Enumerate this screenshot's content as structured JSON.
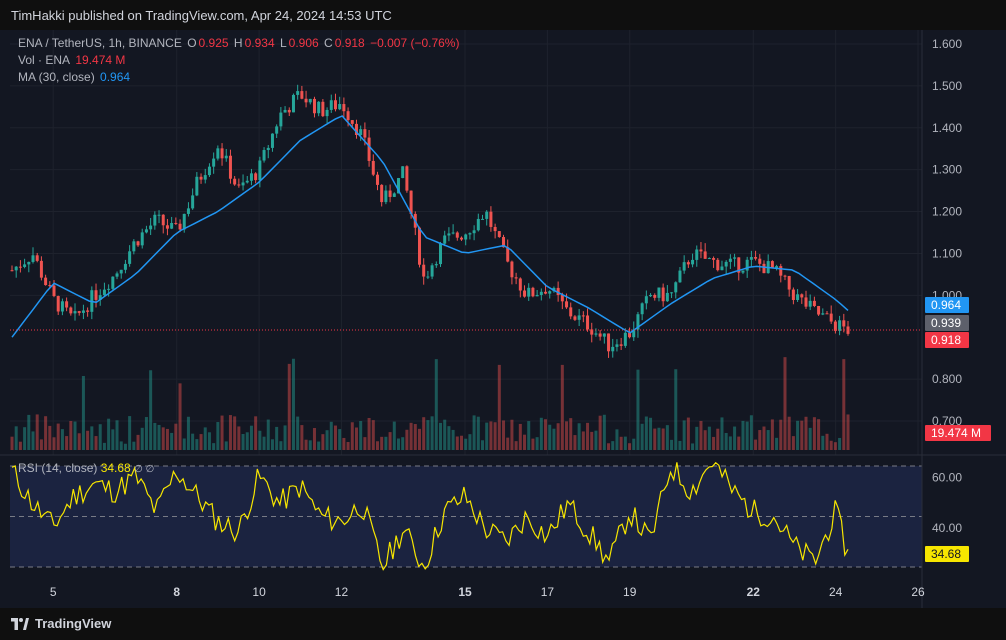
{
  "header": {
    "published_text": "TimHakki published on TradingView.com, Apr 24, 2024 14:53 UTC"
  },
  "legend": {
    "symbol": "ENA / TetherUS, 1h, BINANCE",
    "o_label": "O",
    "o_value": "0.925",
    "h_label": "H",
    "h_value": "0.934",
    "l_label": "L",
    "l_value": "0.906",
    "c_label": "C",
    "c_value": "0.918",
    "change": "−0.007 (−0.76%)",
    "vol_label": "Vol · ENA",
    "vol_value": "19.474 M",
    "ma_label": "MA (30, close)",
    "ma_value": "0.964"
  },
  "rsi_legend": {
    "label": "RSI (14, close)",
    "value": "34.68",
    "icons": "∅ ∅"
  },
  "price_axis": {
    "ticks": [
      "1.600",
      "1.500",
      "1.400",
      "1.300",
      "1.200",
      "1.100",
      "1.000",
      "0.800",
      "0.700"
    ]
  },
  "rsi_axis": {
    "ticks": [
      "60.00",
      "40.00"
    ]
  },
  "time_axis": {
    "ticks": [
      "5",
      "8",
      "10",
      "12",
      "15",
      "17",
      "19",
      "22",
      "24",
      "26"
    ],
    "bold": [
      "8",
      "15",
      "22"
    ]
  },
  "badges": {
    "ma": "0.964",
    "prev": "0.939",
    "last": "0.918",
    "volume": "19.474 M",
    "rsi": "34.68"
  },
  "footer": {
    "brand": "TradingView"
  },
  "colors": {
    "up": "#26a69a",
    "down": "#ef5350",
    "ma": "#2196f3",
    "rsi": "#f7e600",
    "rsi_band": "#1b2340",
    "background": "#131722",
    "grid": "#1e222d"
  },
  "chart_data": [
    {
      "type": "line",
      "title": "ENA / TetherUS, 1h, BINANCE",
      "x_range": [
        "Apr 4",
        "Apr 24"
      ],
      "ylim": [
        0.7,
        1.6
      ],
      "series": [
        {
          "name": "ENA / TetherUS close (approx. 1h candles)",
          "x": [
            4.0,
            4.5,
            5.0,
            5.5,
            6.0,
            6.5,
            7.0,
            7.5,
            8.0,
            8.5,
            9.0,
            9.5,
            10.0,
            10.5,
            11.0,
            11.5,
            12.0,
            12.5,
            13.0,
            13.5,
            14.0,
            14.5,
            15.0,
            15.5,
            16.0,
            16.5,
            17.0,
            17.5,
            18.0,
            18.5,
            19.0,
            19.5,
            20.0,
            20.5,
            21.0,
            21.5,
            22.0,
            22.5,
            23.0,
            23.5,
            24.0,
            24.3
          ],
          "values": [
            1.06,
            1.1,
            0.99,
            0.94,
            1.0,
            1.05,
            1.13,
            1.18,
            1.15,
            1.27,
            1.36,
            1.25,
            1.3,
            1.43,
            1.48,
            1.44,
            1.46,
            1.38,
            1.22,
            1.29,
            1.04,
            1.13,
            1.15,
            1.2,
            1.08,
            1.0,
            1.02,
            0.96,
            0.93,
            0.88,
            0.91,
            1.0,
            1.0,
            1.1,
            1.08,
            1.07,
            1.08,
            1.06,
            1.0,
            0.96,
            0.93,
            0.918
          ]
        },
        {
          "name": "MA (30, close)",
          "x": [
            4.0,
            5.0,
            6.0,
            7.0,
            8.0,
            9.0,
            10.0,
            11.0,
            12.0,
            13.0,
            14.0,
            15.0,
            16.0,
            17.0,
            18.0,
            19.0,
            20.0,
            21.0,
            22.0,
            23.0,
            24.0,
            24.3
          ],
          "values": [
            0.9,
            1.03,
            0.98,
            1.05,
            1.15,
            1.2,
            1.27,
            1.37,
            1.43,
            1.32,
            1.14,
            1.1,
            1.12,
            1.02,
            0.97,
            0.91,
            0.98,
            1.04,
            1.07,
            1.06,
            0.99,
            0.964
          ]
        }
      ],
      "last_price": 0.918,
      "prev_close": 0.939
    },
    {
      "type": "bar",
      "title": "Vol · ENA",
      "last_volume": "19.474 M"
    },
    {
      "type": "line",
      "title": "RSI (14, close)",
      "ylim": [
        25,
        75
      ],
      "bands": [
        30,
        50,
        70
      ],
      "series": [
        {
          "name": "RSI (14, close)",
          "x": [
            4.0,
            4.5,
            5.0,
            5.5,
            6.0,
            6.5,
            7.0,
            7.5,
            8.0,
            8.5,
            9.0,
            9.5,
            10.0,
            10.5,
            11.0,
            11.5,
            12.0,
            12.5,
            13.0,
            13.5,
            14.0,
            14.5,
            15.0,
            15.5,
            16.0,
            16.5,
            17.0,
            17.5,
            18.0,
            18.5,
            19.0,
            19.5,
            20.0,
            20.5,
            21.0,
            21.5,
            22.0,
            22.5,
            23.0,
            23.5,
            24.0,
            24.3
          ],
          "values": [
            68,
            55,
            46,
            58,
            63,
            60,
            66,
            52,
            68,
            58,
            48,
            44,
            66,
            55,
            62,
            50,
            48,
            55,
            30,
            45,
            30,
            52,
            58,
            45,
            40,
            50,
            42,
            55,
            44,
            32,
            52,
            40,
            70,
            60,
            72,
            60,
            52,
            50,
            38,
            32,
            52,
            34.68
          ]
        }
      ]
    }
  ]
}
